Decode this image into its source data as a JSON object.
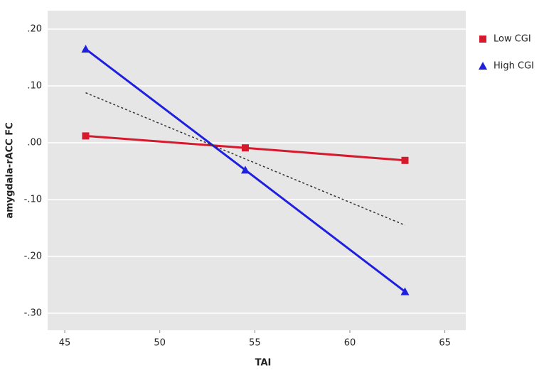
{
  "chart_data": {
    "type": "line",
    "x_label": "TAI",
    "y_label": "amygdala-rACC FC",
    "xlim": [
      44.1,
      66.1
    ],
    "xticks": [
      45,
      50,
      55,
      60,
      65
    ],
    "ylim": [
      -0.33,
      0.2325
    ],
    "yticks": [
      {
        "value": 0.2,
        "label": ".20"
      },
      {
        "value": 0.1,
        "label": ".10"
      },
      {
        "value": 0,
        "label": ".00"
      },
      {
        "value": -0.1,
        "label": "-.10"
      },
      {
        "value": -0.2,
        "label": "-.20"
      },
      {
        "value": -0.3,
        "label": "-.30"
      }
    ],
    "grid": true,
    "legend": "right",
    "series": [
      {
        "name": "Low CGI",
        "color": "#d7192e",
        "marker": "square",
        "x": [
          46.1,
          54.5,
          62.9
        ],
        "values": [
          0.012,
          -0.009,
          -0.031
        ]
      },
      {
        "name": "High CGI",
        "color": "#1f1fe0",
        "marker": "triangle",
        "x": [
          46.1,
          54.5,
          62.9
        ],
        "values": [
          0.165,
          -0.048,
          -0.262
        ]
      },
      {
        "color": "#333333",
        "dashed": true,
        "x": [
          46.1,
          62.9
        ],
        "values": [
          0.088,
          -0.145
        ]
      }
    ]
  }
}
